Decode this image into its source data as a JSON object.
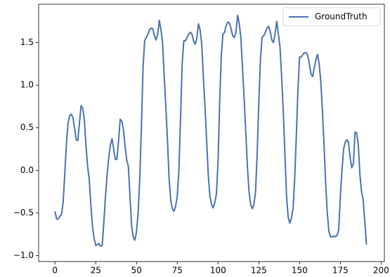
{
  "chart_data": {
    "type": "line",
    "x": [
      0,
      1,
      2,
      3,
      4,
      5,
      6,
      7,
      8,
      9,
      10,
      11,
      12,
      13,
      14,
      15,
      16,
      17,
      18,
      19,
      20,
      21,
      22,
      23,
      24,
      25,
      26,
      27,
      28,
      29,
      30,
      31,
      32,
      33,
      34,
      35,
      36,
      37,
      38,
      39,
      40,
      41,
      42,
      43,
      44,
      45,
      46,
      47,
      48,
      49,
      50,
      51,
      52,
      53,
      54,
      55,
      56,
      57,
      58,
      59,
      60,
      61,
      62,
      63,
      64,
      65,
      66,
      67,
      68,
      69,
      70,
      71,
      72,
      73,
      74,
      75,
      76,
      77,
      78,
      79,
      80,
      81,
      82,
      83,
      84,
      85,
      86,
      87,
      88,
      89,
      90,
      91,
      92,
      93,
      94,
      95,
      96,
      97,
      98,
      99,
      100,
      101,
      102,
      103,
      104,
      105,
      106,
      107,
      108,
      109,
      110,
      111,
      112,
      113,
      114,
      115,
      116,
      117,
      118,
      119,
      120,
      121,
      122,
      123,
      124,
      125,
      126,
      127,
      128,
      129,
      130,
      131,
      132,
      133,
      134,
      135,
      136,
      137,
      138,
      139,
      140,
      141,
      142,
      143,
      144,
      145,
      146,
      147,
      148,
      149,
      150,
      151,
      152,
      153,
      154,
      155,
      156,
      157,
      158,
      159,
      160,
      161,
      162,
      163,
      164,
      165,
      166,
      167,
      168,
      169,
      170,
      171,
      172,
      173,
      174,
      175,
      176,
      177,
      178,
      179,
      180,
      181,
      182,
      183,
      184,
      185,
      186,
      187,
      188,
      189,
      190,
      191
    ],
    "series": [
      {
        "name": "GroundTruth",
        "color": "#4a72b0",
        "values": [
          -0.48,
          -0.57,
          -0.57,
          -0.54,
          -0.52,
          -0.38,
          -0.05,
          0.3,
          0.55,
          0.64,
          0.66,
          0.62,
          0.5,
          0.36,
          0.35,
          0.55,
          0.76,
          0.73,
          0.6,
          0.3,
          0.05,
          -0.1,
          -0.4,
          -0.65,
          -0.8,
          -0.88,
          -0.87,
          -0.86,
          -0.89,
          -0.88,
          -0.6,
          -0.3,
          -0.05,
          0.15,
          0.3,
          0.37,
          0.25,
          0.13,
          0.13,
          0.35,
          0.6,
          0.58,
          0.48,
          0.28,
          0.12,
          0.05,
          -0.3,
          -0.65,
          -0.78,
          -0.82,
          -0.72,
          -0.5,
          -0.1,
          0.5,
          1.2,
          1.52,
          1.56,
          1.6,
          1.65,
          1.67,
          1.66,
          1.58,
          1.53,
          1.6,
          1.76,
          1.65,
          1.5,
          1.1,
          0.75,
          0.35,
          -0.1,
          -0.35,
          -0.45,
          -0.48,
          -0.42,
          -0.3,
          0.0,
          0.6,
          1.25,
          1.52,
          1.52,
          1.56,
          1.6,
          1.62,
          1.6,
          1.52,
          1.48,
          1.55,
          1.72,
          1.65,
          1.48,
          1.1,
          0.75,
          0.35,
          -0.05,
          -0.3,
          -0.4,
          -0.44,
          -0.38,
          -0.28,
          0.1,
          0.8,
          1.35,
          1.6,
          1.62,
          1.7,
          1.74,
          1.73,
          1.66,
          1.58,
          1.56,
          1.62,
          1.82,
          1.72,
          1.56,
          1.2,
          0.85,
          0.45,
          0.05,
          -0.25,
          -0.4,
          -0.45,
          -0.4,
          -0.25,
          0.2,
          0.8,
          1.3,
          1.56,
          1.58,
          1.62,
          1.67,
          1.69,
          1.63,
          1.53,
          1.5,
          1.6,
          1.75,
          1.6,
          1.45,
          1.1,
          0.7,
          0.2,
          -0.3,
          -0.55,
          -0.62,
          -0.56,
          -0.45,
          -0.1,
          0.4,
          0.95,
          1.33,
          1.33,
          1.36,
          1.38,
          1.38,
          1.35,
          1.25,
          1.13,
          1.1,
          1.2,
          1.3,
          1.36,
          1.25,
          1.05,
          0.7,
          0.3,
          -0.15,
          -0.5,
          -0.72,
          -0.78,
          -0.78,
          -0.77,
          -0.78,
          -0.76,
          -0.7,
          -0.3,
          0.0,
          0.25,
          0.33,
          0.36,
          0.33,
          0.15,
          0.03,
          0.08,
          0.45,
          0.44,
          0.3,
          -0.05,
          -0.25,
          -0.35,
          -0.6,
          -0.87
        ]
      }
    ],
    "xlim": [
      -10,
      202
    ],
    "xticks": [
      0,
      25,
      50,
      75,
      100,
      125,
      150,
      175,
      200
    ],
    "ylim": [
      -1.07,
      1.95
    ],
    "yticks": [
      {
        "value": -1,
        "label": "−1.0"
      },
      {
        "value": -0.5,
        "label": "−0.5"
      },
      {
        "value": 0,
        "label": "0.0"
      },
      {
        "value": 0.5,
        "label": "0.5"
      },
      {
        "value": 1,
        "label": "1.0"
      },
      {
        "value": 1.5,
        "label": "1.5"
      }
    ],
    "legend": "upper right"
  }
}
